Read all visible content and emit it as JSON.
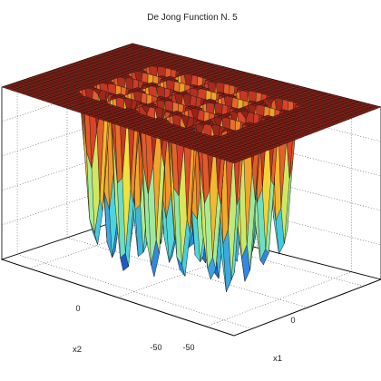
{
  "chart_data": {
    "type": "surface",
    "title": "De Jong Function N. 5",
    "xlabel": "x1",
    "ylabel": "x2",
    "zlabel": "",
    "x_ticks": [
      "-50",
      "0"
    ],
    "y_ticks": [
      "-50",
      "0"
    ],
    "xlim": [
      -65.536,
      65.536
    ],
    "ylim": [
      -65.536,
      65.536
    ],
    "grid": true,
    "minima_grid": {
      "centers": [
        -32,
        -16,
        0,
        16,
        32
      ],
      "rows": 5,
      "cols": 5
    },
    "colormap": [
      "#0a1fa8",
      "#2f7fe0",
      "#45d4e2",
      "#a6ec96",
      "#f3e23a",
      "#f29a28",
      "#d9402b",
      "#8a1f14"
    ]
  }
}
